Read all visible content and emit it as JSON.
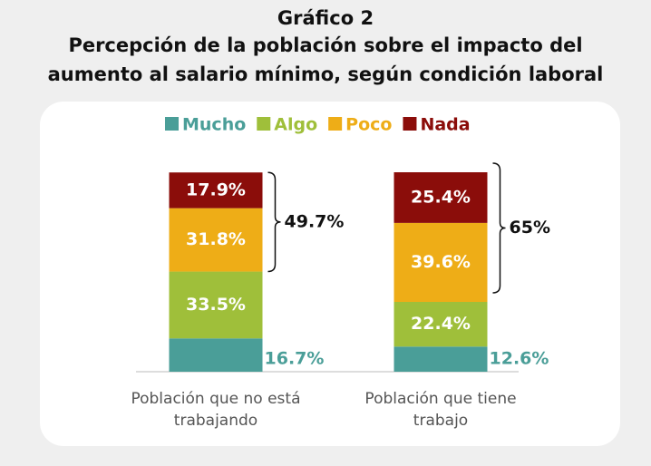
{
  "chart_data": {
    "type": "stacked_bar",
    "title": "Gráfico 2",
    "subtitle": [
      "Percepción de la población sobre el impacto del",
      "aumento al salario mínimo, según condición laboral"
    ],
    "categories": [
      "Población que no está trabajando",
      "Población que tiene trabajo"
    ],
    "series": [
      {
        "name": "Mucho",
        "color": "#4a9e98",
        "values": [
          16.7,
          12.6
        ],
        "value_labels": [
          "16.7%",
          "12.6%"
        ]
      },
      {
        "name": "Algo",
        "color": "#9fbf3a",
        "values": [
          33.5,
          22.4
        ],
        "value_labels": [
          "33.5%",
          "22.4%"
        ]
      },
      {
        "name": "Poco",
        "color": "#eead17",
        "values": [
          31.8,
          39.6
        ],
        "value_labels": [
          "31.8%",
          "39.6%"
        ]
      },
      {
        "name": "Nada",
        "color": "#8b0d0a",
        "values": [
          17.9,
          25.4
        ],
        "value_labels": [
          "17.9%",
          "25.4%"
        ]
      }
    ],
    "annotations": [
      "49.7%",
      "65%"
    ],
    "ylim": [
      0,
      100
    ]
  }
}
